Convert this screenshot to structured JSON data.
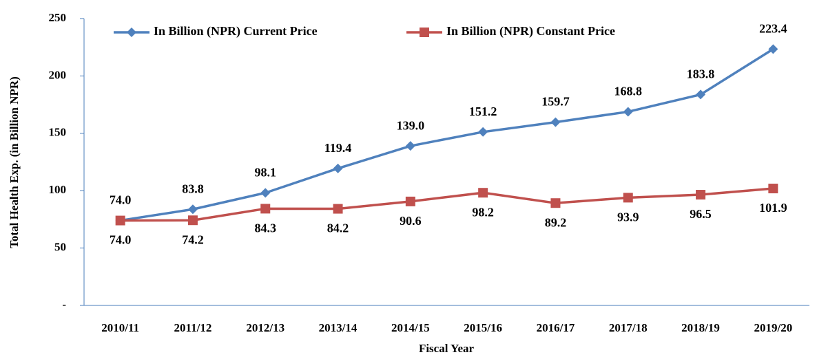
{
  "chart_data": {
    "type": "line",
    "x_label": "Fiscal Year",
    "y_label": "Total Health Exp. (in Billion NPR)",
    "categories": [
      "2010/11",
      "2011/12",
      "2012/13",
      "2013/14",
      "2014/15",
      "2015/16",
      "2016/17",
      "2017/18",
      "2018/19",
      "2019/20"
    ],
    "series": [
      {
        "name": "In Billion (NPR) Current Price",
        "color": "#4f81bd",
        "marker": "diamond",
        "values": [
          74.0,
          83.8,
          98.1,
          119.4,
          139.0,
          151.2,
          159.7,
          168.8,
          183.8,
          223.4
        ],
        "value_labels": [
          "74.0",
          "83.8",
          "98.1",
          "119.4",
          "139.0",
          "151.2",
          "159.7",
          "168.8",
          "183.8",
          "223.4"
        ]
      },
      {
        "name": "In Billion (NPR) Constant Price",
        "color": "#c0504d",
        "marker": "square",
        "values": [
          74.0,
          74.2,
          84.3,
          84.2,
          90.6,
          98.2,
          89.2,
          93.9,
          96.5,
          101.9
        ],
        "value_labels": [
          "74.0",
          "74.2",
          "84.3",
          "84.2",
          "90.6",
          "98.2",
          "89.2",
          "93.9",
          "96.5",
          "101.9"
        ]
      }
    ],
    "ylim": [
      0,
      250
    ],
    "yticks": [
      {
        "value": 0,
        "label": "-"
      },
      50,
      100,
      150,
      200,
      250
    ],
    "grid": false,
    "legend": "top"
  }
}
